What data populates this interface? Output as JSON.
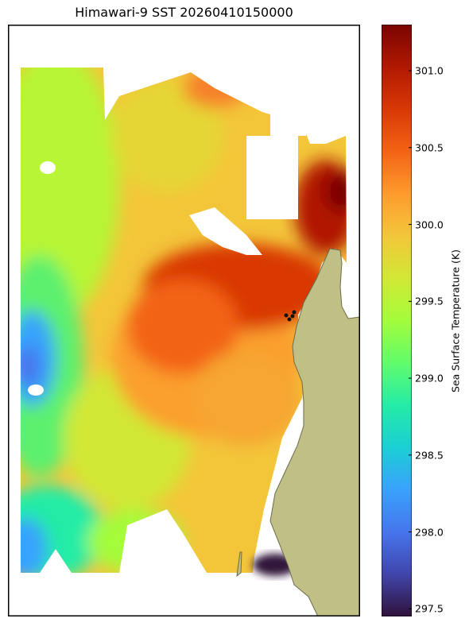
{
  "map": {
    "title": "Himawari-9 SST 20260410150000",
    "colorbar": {
      "label": "Sea Surface Temperature (K)",
      "min": 297.45,
      "max": 301.3,
      "ticks": [
        "297.5",
        "298.0",
        "298.5",
        "299.0",
        "299.5",
        "300.0",
        "300.5",
        "301.0"
      ],
      "colormap": [
        "#30123b",
        "#4145ab",
        "#4675ed",
        "#39a2fc",
        "#1bcfd4",
        "#24eca6",
        "#61fc6c",
        "#a4fc3b",
        "#d1e834",
        "#f3c63a",
        "#fe9b2d",
        "#f36315",
        "#d93806",
        "#b11901",
        "#7a0402"
      ]
    },
    "colors": {
      "land": "#bfbf86",
      "land_edge": "#6b6b4a",
      "markers": "#111111"
    }
  }
}
